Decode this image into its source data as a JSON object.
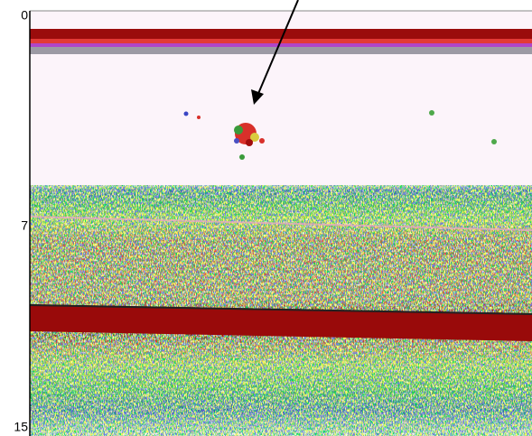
{
  "depth_axis": {
    "labels": [
      "0",
      "7",
      "15"
    ]
  }
}
